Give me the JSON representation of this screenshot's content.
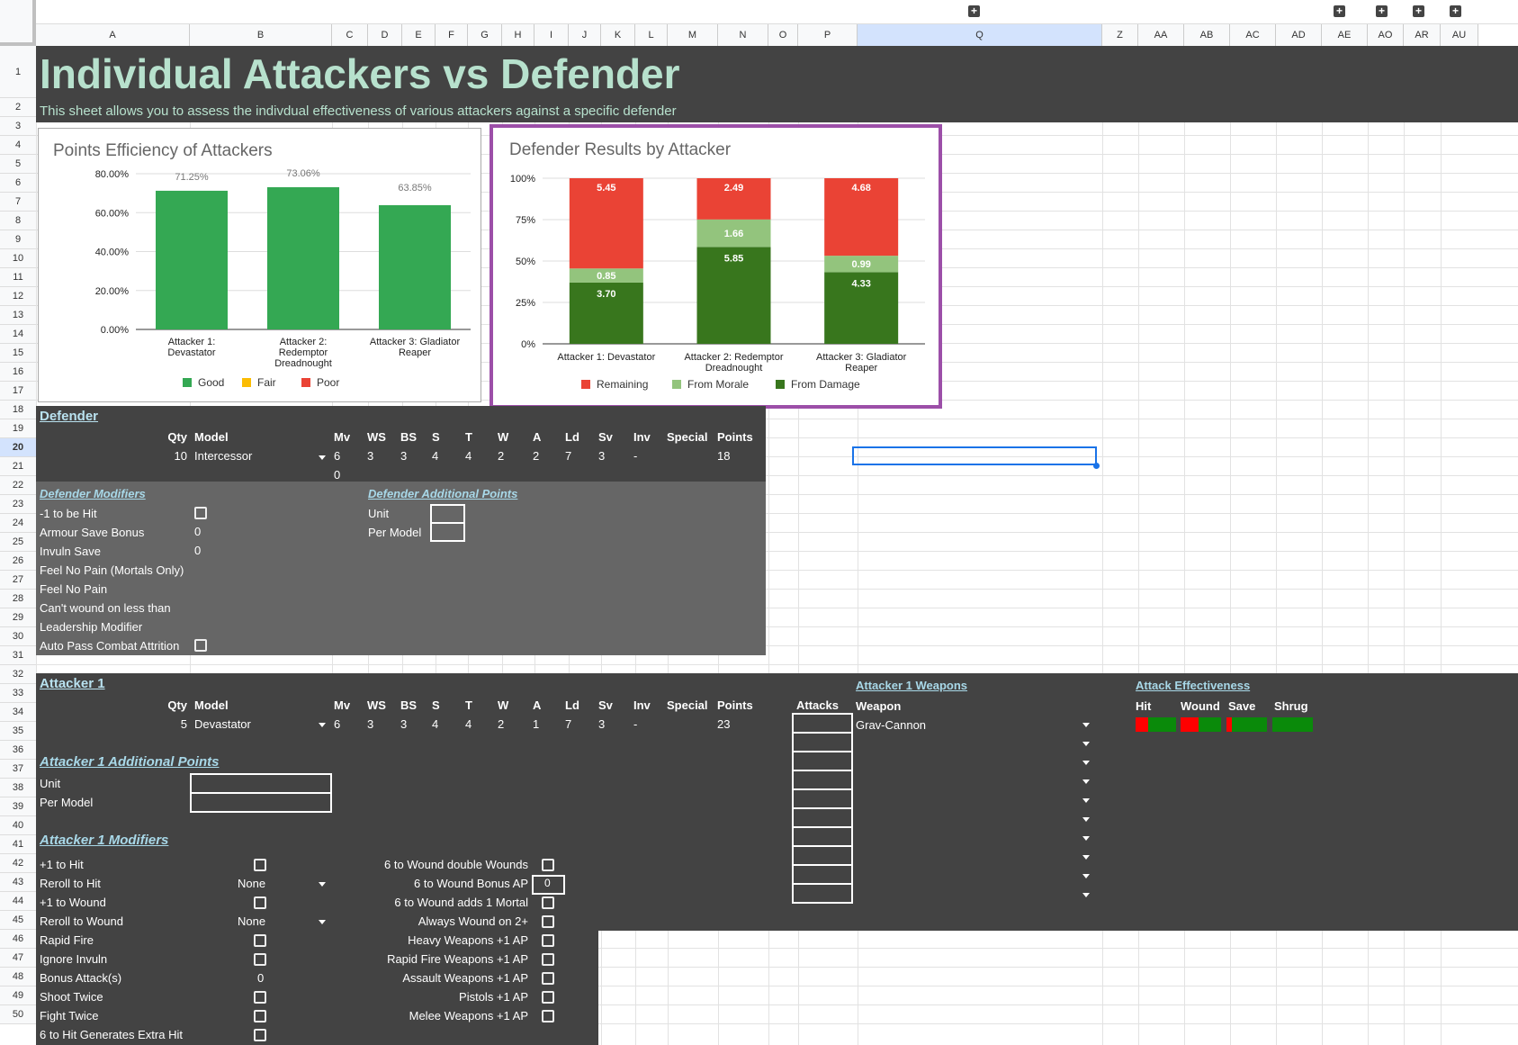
{
  "columns": [
    "A",
    "B",
    "C",
    "D",
    "E",
    "F",
    "G",
    "H",
    "I",
    "J",
    "K",
    "L",
    "M",
    "N",
    "O",
    "P",
    "Q",
    "Z",
    "AA",
    "AB",
    "AC",
    "AD",
    "AE",
    "AO",
    "AR",
    "AU"
  ],
  "rows": [
    "1",
    "2",
    "3",
    "4",
    "5",
    "6",
    "7",
    "8",
    "9",
    "10",
    "11",
    "12",
    "13",
    "14",
    "15",
    "16",
    "17",
    "18",
    "19",
    "20",
    "21",
    "22",
    "23",
    "24",
    "25",
    "26",
    "27",
    "28",
    "29",
    "30",
    "31",
    "32",
    "33",
    "34",
    "35",
    "36",
    "37",
    "38",
    "39",
    "40",
    "41",
    "42",
    "43",
    "44",
    "45",
    "46",
    "47",
    "48",
    "49",
    "50"
  ],
  "title": "Individual Attackers vs Defender",
  "subtitle": "This sheet allows you to assess the indivdual effectiveness of various attackers against a specific defender",
  "chart_data": [
    {
      "type": "bar",
      "title": "Points Efficiency of Attackers",
      "categories": [
        "Attacker 1: Devastator",
        "Attacker 2: Redemptor Dreadnought",
        "Attacker 3: Gladiator Reaper"
      ],
      "category_lines": [
        [
          "Attacker 1:",
          "Devastator"
        ],
        [
          "Attacker 2:",
          "Redemptor",
          "Dreadnought"
        ],
        [
          "Attacker 3: Gladiator",
          "Reaper"
        ]
      ],
      "values": [
        71.25,
        73.06,
        63.85
      ],
      "value_labels": [
        "71.25%",
        "73.06%",
        "63.85%"
      ],
      "yticks": [
        "0.00%",
        "20.00%",
        "40.00%",
        "60.00%",
        "80.00%"
      ],
      "ylim": [
        0,
        80
      ],
      "legend": [
        "Good",
        "Fair",
        "Poor"
      ],
      "legend_colors": [
        "#34a853",
        "#fbbc04",
        "#ea4335"
      ],
      "bar_color": "#34a853",
      "legend_position": "bottom"
    },
    {
      "type": "bar",
      "stacked": "percent",
      "title": "Defender Results by Attacker",
      "categories": [
        "Attacker 1: Devastator",
        "Attacker 2: Redemptor Dreadnought",
        "Attacker 3: Gladiator Reaper"
      ],
      "category_lines": [
        [
          "Attacker 1: Devastator"
        ],
        [
          "Attacker 2: Redemptor",
          "Dreadnought"
        ],
        [
          "Attacker 3: Gladiator",
          "Reaper"
        ]
      ],
      "series": [
        {
          "name": "From Damage",
          "color": "#38761d",
          "values": [
            3.7,
            5.85,
            4.33
          ],
          "labels": [
            "3.70",
            "5.85",
            "4.33"
          ]
        },
        {
          "name": "From Morale",
          "color": "#93c47d",
          "values": [
            0.85,
            1.66,
            0.99
          ],
          "labels": [
            "0.85",
            "1.66",
            "0.99"
          ]
        },
        {
          "name": "Remaining",
          "color": "#ea4335",
          "values": [
            5.45,
            2.49,
            4.68
          ],
          "labels": [
            "5.45",
            "2.49",
            "4.68"
          ]
        }
      ],
      "legend_order": [
        "Remaining",
        "From Morale",
        "From Damage"
      ],
      "yticks": [
        "0%",
        "25%",
        "50%",
        "75%",
        "100%"
      ],
      "legend_position": "bottom"
    }
  ],
  "defender": {
    "heading": "Defender",
    "headers": [
      "Qty",
      "Model",
      "Mv",
      "WS",
      "BS",
      "S",
      "T",
      "W",
      "A",
      "Ld",
      "Sv",
      "Inv",
      "Special",
      "Points"
    ],
    "row": [
      "10",
      "Intercessor",
      "6",
      "3",
      "3",
      "4",
      "4",
      "2",
      "2",
      "7",
      "3",
      "-",
      "",
      "18"
    ],
    "extra": "0",
    "mods_heading": "Defender Modifiers",
    "points_heading": "Defender Additional Points",
    "points_labels": [
      "Unit",
      "Per Model"
    ],
    "mods": [
      "-1 to be Hit",
      "Armour Save Bonus",
      "Invuln Save",
      "Feel No Pain (Mortals Only)",
      "Feel No Pain",
      "Can't wound on less than",
      "Leadership Modifier",
      "Auto Pass Combat Attrition"
    ],
    "armour_val": "0",
    "invuln_val": "0"
  },
  "attacker": {
    "heading": "Attacker 1",
    "headers": [
      "Qty",
      "Model",
      "Mv",
      "WS",
      "BS",
      "S",
      "T",
      "W",
      "A",
      "Ld",
      "Sv",
      "Inv",
      "Special",
      "Points"
    ],
    "row": [
      "5",
      "Devastator",
      "6",
      "3",
      "3",
      "4",
      "4",
      "2",
      "1",
      "7",
      "3",
      "-",
      "",
      "23"
    ],
    "attacks_label": "Attacks",
    "weapons_heading": "Attacker 1 Weapons",
    "weapon_label": "Weapon",
    "weapon": "Grav-Cannon",
    "effect_heading": "Attack Effectiveness",
    "effect_labels": [
      "Hit",
      "Wound",
      "Save",
      "Shrug"
    ],
    "points_heading": "Attacker 1 Additional Points",
    "points_labels": [
      "Unit",
      "Per Model"
    ],
    "mods_heading": "Attacker 1 Modifiers",
    "mods_left": [
      "+1 to Hit",
      "Reroll to Hit",
      "+1 to Wound",
      "Reroll to Wound",
      "Rapid Fire",
      "Ignore Invuln",
      "Bonus Attack(s)",
      "Shoot Twice",
      "Fight Twice",
      "6 to Hit Generates Extra Hit"
    ],
    "reroll_hit": "None",
    "reroll_wound": "None",
    "bonus_attacks": "0",
    "mods_right": [
      "6 to Wound double Wounds",
      "6 to Wound Bonus AP",
      "6 to Wound adds 1 Mortal",
      "Always Wound on 2+",
      "Heavy Weapons +1 AP",
      "Rapid Fire Weapons +1 AP",
      "Assault Weapons +1 AP",
      "Pistols +1 AP",
      "Melee Weapons +1 AP"
    ],
    "bonus_ap": "0"
  }
}
